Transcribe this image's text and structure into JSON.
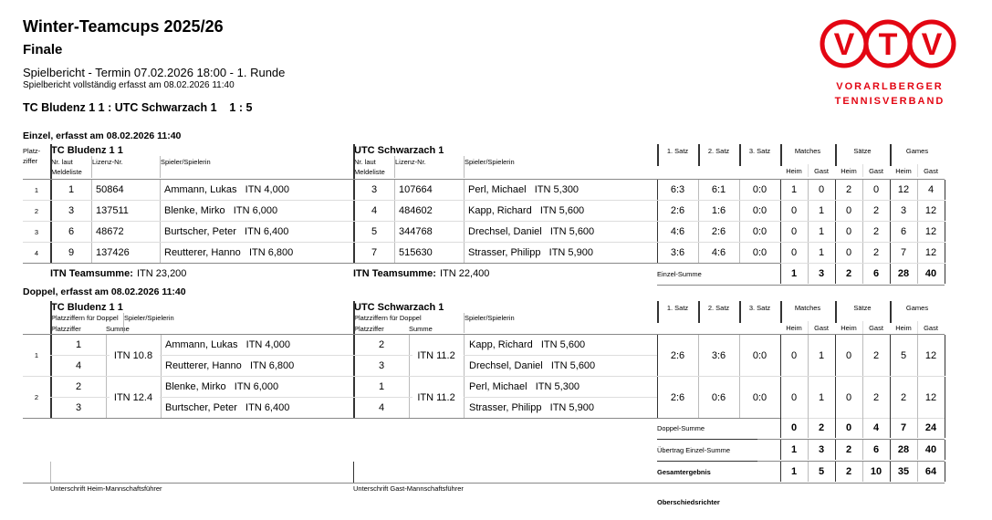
{
  "header": {
    "title": "Winter-Teamcups 2025/26",
    "subtitle": "Finale",
    "report": "Spielbericht - Termin 07.02.2026 18:00 - 1. Runde",
    "complete": "Spielbericht vollständig erfasst am 08.02.2026 11:40",
    "match": "TC Bludenz 1 1 : UTC Schwarzach 1    1 : 5"
  },
  "logo": {
    "letters": [
      "V",
      "T",
      "V"
    ],
    "line1": "VORARLBERGER",
    "line2": "TENNISVERBAND",
    "color": "#e30613"
  },
  "cols": {
    "platzziffer": "Platz-\nziffer",
    "nr": "Nr. laut\nMeldeliste",
    "lizenz": "Lizenz-Nr.",
    "spieler": "Spieler/Spielerin",
    "satz1": "1. Satz",
    "satz2": "2. Satz",
    "satz3": "3. Satz",
    "matches": "Matches",
    "saetze": "Sätze",
    "games": "Games",
    "heim": "Heim",
    "gast": "Gast",
    "pz_doppel": "Platzziffern für Doppel",
    "pz": "Platzziffer",
    "summe": "Summe"
  },
  "einzel": {
    "heading": "Einzel, erfasst am 08.02.2026 11:40",
    "home": "TC Bludenz 1 1",
    "guest": "UTC Schwarzach 1",
    "rows": [
      {
        "pz": "1",
        "h_nr": "1",
        "h_lic": "50864",
        "h_name": "Ammann, Lukas   ITN 4,000",
        "g_nr": "3",
        "g_lic": "107664",
        "g_name": "Perl, Michael   ITN 5,300",
        "s1": "6:3",
        "s2": "6:1",
        "s3": "0:0",
        "mh": "1",
        "mg": "0",
        "sh": "2",
        "sg": "0",
        "gh": "12",
        "gg": "4"
      },
      {
        "pz": "2",
        "h_nr": "3",
        "h_lic": "137511",
        "h_name": "Blenke, Mirko   ITN 6,000",
        "g_nr": "4",
        "g_lic": "484602",
        "g_name": "Kapp, Richard   ITN 5,600",
        "s1": "2:6",
        "s2": "1:6",
        "s3": "0:0",
        "mh": "0",
        "mg": "1",
        "sh": "0",
        "sg": "2",
        "gh": "3",
        "gg": "12"
      },
      {
        "pz": "3",
        "h_nr": "6",
        "h_lic": "48672",
        "h_name": "Burtscher, Peter   ITN 6,400",
        "g_nr": "5",
        "g_lic": "344768",
        "g_name": "Drechsel, Daniel   ITN 5,600",
        "s1": "4:6",
        "s2": "2:6",
        "s3": "0:0",
        "mh": "0",
        "mg": "1",
        "sh": "0",
        "sg": "2",
        "gh": "6",
        "gg": "12"
      },
      {
        "pz": "4",
        "h_nr": "9",
        "h_lic": "137426",
        "h_name": "Reutterer, Hanno   ITN 6,800",
        "g_nr": "7",
        "g_lic": "515630",
        "g_name": "Strasser, Philipp   ITN 5,900",
        "s1": "3:6",
        "s2": "4:6",
        "s3": "0:0",
        "mh": "0",
        "mg": "1",
        "sh": "0",
        "sg": "2",
        "gh": "7",
        "gg": "12"
      }
    ],
    "team_label": "ITN Teamsumme:",
    "home_sum": "ITN 23,200",
    "guest_sum": "ITN 22,400",
    "sum_label": "Einzel-Summe",
    "sum": [
      "1",
      "3",
      "2",
      "6",
      "28",
      "40"
    ]
  },
  "doppel": {
    "heading": "Doppel, erfasst am 08.02.2026 11:40",
    "home": "TC Bludenz 1 1",
    "guest": "UTC Schwarzach 1",
    "rows": [
      {
        "pz": "1",
        "h_pz": [
          "1",
          "4"
        ],
        "h_sum": "ITN 10.8",
        "h_names": [
          "Ammann, Lukas   ITN 4,000",
          "Reutterer, Hanno   ITN 6,800"
        ],
        "g_pz": [
          "2",
          "3"
        ],
        "g_sum": "ITN 11.2",
        "g_names": [
          "Kapp, Richard   ITN 5,600",
          "Drechsel, Daniel   ITN 5,600"
        ],
        "s1": "2:6",
        "s2": "3:6",
        "s3": "0:0",
        "mh": "0",
        "mg": "1",
        "sh": "0",
        "sg": "2",
        "gh": "5",
        "gg": "12"
      },
      {
        "pz": "2",
        "h_pz": [
          "2",
          "3"
        ],
        "h_sum": "ITN 12.4",
        "h_names": [
          "Blenke, Mirko   ITN 6,000",
          "Burtscher, Peter   ITN 6,400"
        ],
        "g_pz": [
          "1",
          "4"
        ],
        "g_sum": "ITN 11.2",
        "g_names": [
          "Perl, Michael   ITN 5,300",
          "Strasser, Philipp   ITN 5,900"
        ],
        "s1": "2:6",
        "s2": "0:6",
        "s3": "0:0",
        "mh": "0",
        "mg": "1",
        "sh": "0",
        "sg": "2",
        "gh": "2",
        "gg": "12"
      }
    ],
    "sum_label": "Doppel-Summe",
    "sum": [
      "0",
      "2",
      "0",
      "4",
      "7",
      "24"
    ],
    "carry_label": "Übertrag Einzel-Summe",
    "carry": [
      "1",
      "3",
      "2",
      "6",
      "28",
      "40"
    ],
    "total_label": "Gesamtergebnis",
    "total": [
      "1",
      "5",
      "2",
      "10",
      "35",
      "64"
    ]
  },
  "footer": {
    "sign_home": "Unterschrift Heim-Mannschaftsführer",
    "sign_guest": "Unterschrift Gast-Mannschaftsführer",
    "referee": "Oberschiedsrichter"
  }
}
